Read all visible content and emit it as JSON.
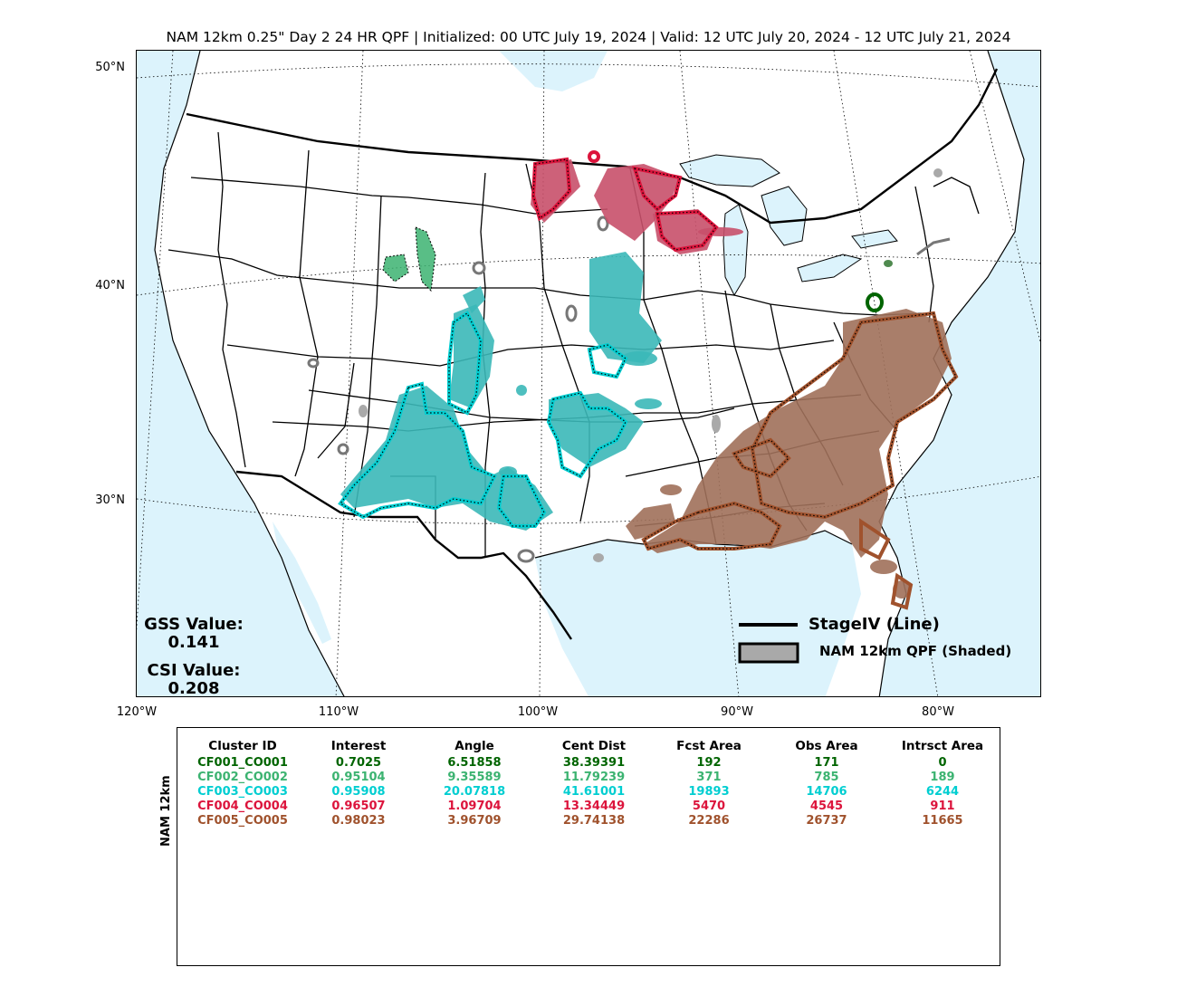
{
  "title": "NAM 12km 0.25\" Day 2 24 HR QPF | Initialized: 00 UTC July 19, 2024 | Valid: 12 UTC July 20, 2024 - 12 UTC July 21, 2024",
  "lat_labels": [
    "50°N",
    "40°N",
    "30°N"
  ],
  "lon_labels": [
    "120°W",
    "110°W",
    "100°W",
    "90°W",
    "80°W"
  ],
  "scores": {
    "gss_label": "GSS Value:",
    "gss_value": "0.141",
    "csi_label": "CSI Value:",
    "csi_value": "0.208"
  },
  "legend": {
    "line_label": "StageIV (Line)",
    "shade_label": "NAM 12km QPF (Shaded)"
  },
  "table": {
    "ylabel": "NAM 12km",
    "headers": [
      "Cluster ID",
      "Interest",
      "Angle",
      "Cent Dist",
      "Fcst Area",
      "Obs Area",
      "Intrsct Area"
    ],
    "rows": [
      {
        "cells": [
          "CF001_CO001",
          "0.7025",
          "6.51858",
          "38.39391",
          "192",
          "171",
          "0"
        ],
        "color": "#006400"
      },
      {
        "cells": [
          "CF002_CO002",
          "0.95104",
          "9.35589",
          "11.79239",
          "371",
          "785",
          "189"
        ],
        "color": "#3cb371"
      },
      {
        "cells": [
          "CF003_CO003",
          "0.95908",
          "20.07818",
          "41.61001",
          "19893",
          "14706",
          "6244"
        ],
        "color": "#00ced1"
      },
      {
        "cells": [
          "CF004_CO004",
          "0.96507",
          "1.09704",
          "13.34449",
          "5470",
          "4545",
          "911"
        ],
        "color": "#dc143c"
      },
      {
        "cells": [
          "CF005_CO005",
          "0.98023",
          "3.96709",
          "29.74138",
          "22286",
          "26737",
          "11665"
        ],
        "color": "#a0522d"
      }
    ]
  },
  "colors": {
    "ocean": "#dcf3fc",
    "lakes": "#dcf3fc",
    "unmatched": "#a9a9a9",
    "cluster1": "#006400",
    "cluster2": "#3cb371",
    "cluster3": "#00ced1",
    "cluster4": "#dc143c",
    "cluster5": "#a0522d"
  }
}
